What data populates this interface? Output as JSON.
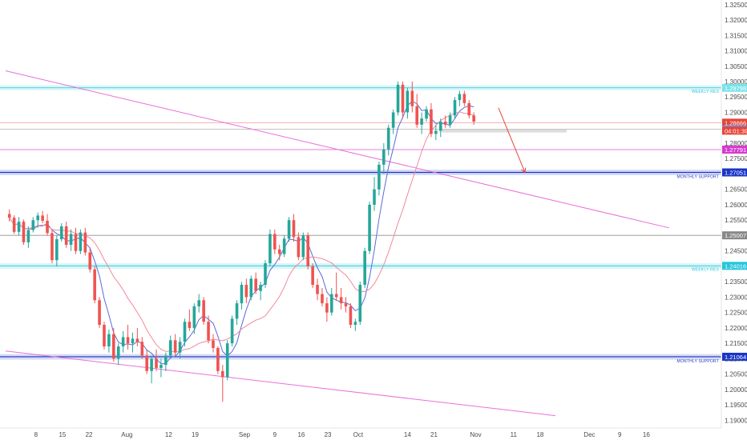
{
  "chart_data": {
    "type": "candlestick",
    "y_axis": {
      "position": "right",
      "ylim": [
        1.1875,
        1.3265
      ],
      "ticks": [
        "1.32500",
        "1.32000",
        "1.31500",
        "1.31000",
        "1.30500",
        "1.30000",
        "1.29500",
        "1.29000",
        "1.28500",
        "1.28000",
        "1.27500",
        "1.27000",
        "1.26500",
        "1.26000",
        "1.25500",
        "1.25000",
        "1.24500",
        "1.24000",
        "1.23500",
        "1.23000",
        "1.22500",
        "1.22000",
        "1.21500",
        "1.21000",
        "1.20500",
        "1.20000",
        "1.19500",
        "1.19000"
      ]
    },
    "x_axis": {
      "ticks": [
        {
          "label": "8",
          "day": 8
        },
        {
          "label": "15",
          "day": 15
        },
        {
          "label": "22",
          "day": 22
        },
        {
          "label": "Aug",
          "day": 32
        },
        {
          "label": "12",
          "day": 43
        },
        {
          "label": "19",
          "day": 50
        },
        {
          "label": "Sep",
          "day": 63
        },
        {
          "label": "9",
          "day": 71
        },
        {
          "label": "16",
          "day": 78
        },
        {
          "label": "23",
          "day": 85
        },
        {
          "label": "Oct",
          "day": 93
        },
        {
          "label": "14",
          "day": 106
        },
        {
          "label": "21",
          "day": 113
        },
        {
          "label": "Nov",
          "day": 124
        },
        {
          "label": "11",
          "day": 134
        },
        {
          "label": "18",
          "day": 141
        },
        {
          "label": "Dec",
          "day": 154
        },
        {
          "label": "9",
          "day": 162
        },
        {
          "label": "16",
          "day": 169
        }
      ]
    },
    "candles_compact": "1.2570,1.2585,1.2545,1.2558;1.2558,1.2566,1.2505,1.2512;1.2512,1.2560,1.2500,1.2545;1.2545,1.2552,1.2470,1.2478;1.2478,1.2530,1.2460,1.2518;1.2518,1.2560,1.2510,1.2550;1.2550,1.2575,1.2525,1.2565;1.2565,1.2580,1.2540,1.2548;1.2548,1.2570,1.2500,1.2508;1.2508,1.2520,1.2410,1.2420;1.2420,1.2500,1.2400,1.2488;1.2488,1.2540,1.2480,1.2530;1.2530,1.2545,1.2460,1.2470;1.2470,1.2520,1.2450,1.2505;1.2505,1.2525,1.2440,1.2450;1.2450,1.2520,1.2440,1.2510;1.2510,1.2525,1.2435,1.2445;1.2445,1.2460,1.2380,1.2390;1.2390,1.2400,1.2280,1.2290;1.2290,1.2300,1.2200,1.2210;1.2210,1.2220,1.2130,1.2140;1.2140,1.2195,1.2120,1.2180;1.2180,1.2200,1.2090,1.2100;1.2100,1.2150,1.2080,1.2140;1.2140,1.2190,1.2120,1.2170;1.2170,1.2210,1.2130,1.2150;1.2150,1.2185,1.2120,1.2165;1.2165,1.2200,1.2140,1.2155;1.2155,1.2170,1.2100,1.2110;1.2110,1.2130,1.2050,1.2060;1.2060,1.2110,1.2020,1.2100;1.2100,1.2130,1.2060,1.2070;1.2070,1.2100,1.2040,1.2080;1.2080,1.2120,1.2060,1.2110;1.2110,1.2175,1.2100,1.2160;1.2160,1.2180,1.2110,1.2120;1.2120,1.2170,1.2100,1.2155;1.2155,1.2230,1.2140,1.2220;1.2220,1.2260,1.2190,1.2200;1.2200,1.2280,1.2180,1.2270;1.2270,1.2310,1.2250,1.2290;1.2290,1.2300,1.2210,1.2220;1.2220,1.2240,1.2150,1.2160;1.2160,1.2180,1.2120,1.2135;1.2135,1.2140,1.2050,1.2060;1.2060,1.2080,1.1960,1.2040;1.2040,1.2160,1.2030,1.2150;1.2150,1.2240,1.2140,1.2230;1.2230,1.2290,1.2210,1.2280;1.2280,1.2350,1.2260,1.2340;1.2340,1.2360,1.2280,1.2300;1.2300,1.2370,1.2290,1.2360;1.2360,1.2380,1.2310,1.2320;1.2320,1.2350,1.2290,1.2340;1.2340,1.2420,1.2330,1.2410;1.2410,1.2520,1.2400,1.2505;1.2505,1.2520,1.2440,1.2455;1.2455,1.2470,1.2420,1.2440;1.2440,1.2500,1.2430,1.2490;1.2490,1.2560,1.2480,1.2550;1.2550,1.2570,1.2480,1.2495;1.2495,1.2510,1.2420,1.2430;1.2430,1.2510,1.2420,1.2500;1.2500,1.2510,1.2390,1.2400;1.2400,1.2410,1.2330,1.2340;1.2340,1.2360,1.2290,1.2310;1.2310,1.2330,1.2270,1.2280;1.2280,1.2300,1.2220,1.2250;1.2250,1.2330,1.2240,1.2310;1.2310,1.2380,1.2290,1.2300;1.2300,1.2330,1.2260,1.2280;1.2280,1.2300,1.2250,1.2270;1.2270,1.2280,1.2200,1.2210;1.2210,1.2230,1.2190,1.2220;1.2220,1.2350,1.2210,1.2340;1.2340,1.2460,1.2330,1.2450;1.2450,1.2610,1.2440,1.2600;1.2600,1.2690,1.2580,1.2650;1.2650,1.2740,1.2630,1.2730;1.2730,1.2800,1.2700,1.2780;1.2780,1.2860,1.2760,1.2850;1.2850,1.2910,1.2830,1.2900;1.2900,1.3000,1.2890,1.2990;1.2990,1.3000,1.2880,1.2900;1.2900,1.2980,1.2880,1.2970;1.2970,1.3000,1.2900,1.2920;1.2920,1.2960,1.2850,1.2860;1.2860,1.2900,1.2830,1.2880;1.2880,1.2920,1.2870,1.2910;1.2910,1.2930,1.2820,1.2830;1.2830,1.2860,1.2810,1.2840;1.2840,1.2880,1.2820,1.2870;1.2870,1.2890,1.2850,1.2860;1.2860,1.2900,1.2850,1.2890;1.2890,1.2950,1.2880,1.2940;1.2940,1.2970,1.2920,1.2960;1.2960,1.2970,1.2920,1.2930;1.2930,1.2940,1.2880,1.2890;1.2890,1.2900,1.2860,1.2870",
    "candle_start_day": 1,
    "candle_step_days": 1.25,
    "moving_averages": [
      {
        "color": "#5b6bd6",
        "period": 5
      },
      {
        "color": "#f08a99",
        "period": 14
      }
    ],
    "horizontal_lines": [
      {
        "price": 1.29798,
        "color": "#26c6da",
        "zone": [
          1.2972,
          1.2988
        ],
        "label": "WEEKLY RES",
        "badge": "1.29798",
        "badge_color": "#7be3ea",
        "badge_text_color": "#222222"
      },
      {
        "price": 1.28666,
        "color": "#f39c9c",
        "badge": "1.28666",
        "badge_color": "#e5453a"
      },
      {
        "price": 1.28451,
        "color": "#b0b0b0",
        "badge": "1.28451",
        "badge_color": "#6e8fd6",
        "badge_extra": "1.28490"
      },
      {
        "price": 1.27791,
        "color": "#e055d0",
        "badge": "1.27791",
        "badge_color": "#d63ad0"
      },
      {
        "price": 1.27051,
        "color": "#1a35c4",
        "zone": [
          1.2696,
          1.2714
        ],
        "label": "MONTHLY SUPPORT",
        "badge": "1.27051",
        "badge_color": "#1a35c4"
      },
      {
        "price": 1.25007,
        "color": "#909090",
        "badge": "1.25007",
        "badge_color": "#888888"
      },
      {
        "price": 1.24016,
        "color": "#26c6da",
        "zone": [
          1.2392,
          1.241
        ],
        "label": "WEEKLY RES",
        "badge": "1.24016",
        "badge_color": "#26c6da"
      },
      {
        "price": 1.21064,
        "color": "#1a35c4",
        "zone": [
          1.2097,
          1.2115
        ],
        "label": "MONTHLY SUPPORT",
        "badge": "1.21064",
        "badge_color": "#1a35c4"
      }
    ],
    "countdown_badge": {
      "text": "04:01:39",
      "color": "#e5453a"
    },
    "grey_box": {
      "from_day": 115,
      "to_day": 148,
      "price": 1.284
    },
    "trendlines": [
      {
        "color": "#e870d8",
        "from": {
          "day": 0,
          "price": 1.3035
        },
        "to": {
          "day": 175,
          "price": 1.2525
        }
      },
      {
        "color": "#e870d8",
        "from": {
          "day": 0,
          "price": 1.2125
        },
        "to": {
          "day": 145,
          "price": 1.1915
        }
      }
    ],
    "projection_arrow": {
      "color": "#e5453a",
      "from": {
        "day": 130,
        "price": 1.2915
      },
      "to": {
        "day": 137,
        "price": 1.2705
      }
    },
    "colors": {
      "up": "#26a69a",
      "down": "#ef5350",
      "wick_up": "#26a69a",
      "wick_down": "#ef5350"
    }
  }
}
